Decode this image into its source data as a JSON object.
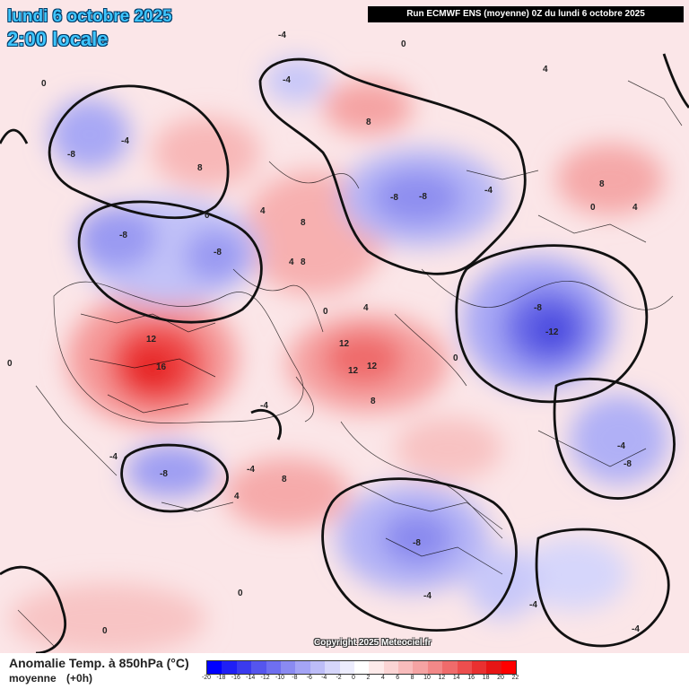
{
  "header": {
    "date_line": "lundi 6 octobre 2025",
    "time_line": "2:00 locale",
    "run_info": "Run ECMWF ENS (moyenne) 0Z du lundi 6 octobre 2025"
  },
  "footer": {
    "variable": "Anomalie Temp. à 850hPa (°C)",
    "stat": "moyenne",
    "lead": "(+0h)",
    "scale_values": [
      "-20",
      "-18",
      "-16",
      "-14",
      "-12",
      "-10",
      "-8",
      "-6",
      "-4",
      "-2",
      "0",
      "2",
      "4",
      "6",
      "8",
      "10",
      "12",
      "14",
      "16",
      "18",
      "20",
      "22"
    ],
    "scale_colors": [
      "#0000ff",
      "#1f1ff5",
      "#3a3aee",
      "#5555ee",
      "#6f6ff0",
      "#8a8af2",
      "#a4a4f5",
      "#bdbdf8",
      "#d6d6fb",
      "#ececfd",
      "#ffffff",
      "#fdeaea",
      "#fbd4d4",
      "#f8bcbc",
      "#f5a3a3",
      "#f28888",
      "#ef6b6b",
      "#ec4e4e",
      "#e93030",
      "#e61515",
      "#ff0000"
    ]
  },
  "copyright": "Copyright 2025 Meteociel.fr",
  "colors": {
    "warm": "#ef5555",
    "cold": "#5a5ae8",
    "land_border": "#000000",
    "contour": "#111111"
  },
  "map_labels": [
    "-4",
    "0",
    "4",
    "-4",
    "-8",
    "-8",
    "-4",
    "8",
    "0",
    "4",
    "-8",
    "-8",
    "-4",
    "0",
    "4",
    "8",
    "-8",
    "-12",
    "-8",
    "12",
    "16",
    "8",
    "12",
    "12",
    "12",
    "8",
    "4",
    "-8",
    "-4",
    "8",
    "0",
    "-4",
    "-8",
    "-8",
    "-4",
    "8",
    "8",
    "0",
    "-4",
    "0",
    "-4",
    "4",
    "4",
    "-4",
    "0",
    "0",
    "0",
    "-4"
  ]
}
